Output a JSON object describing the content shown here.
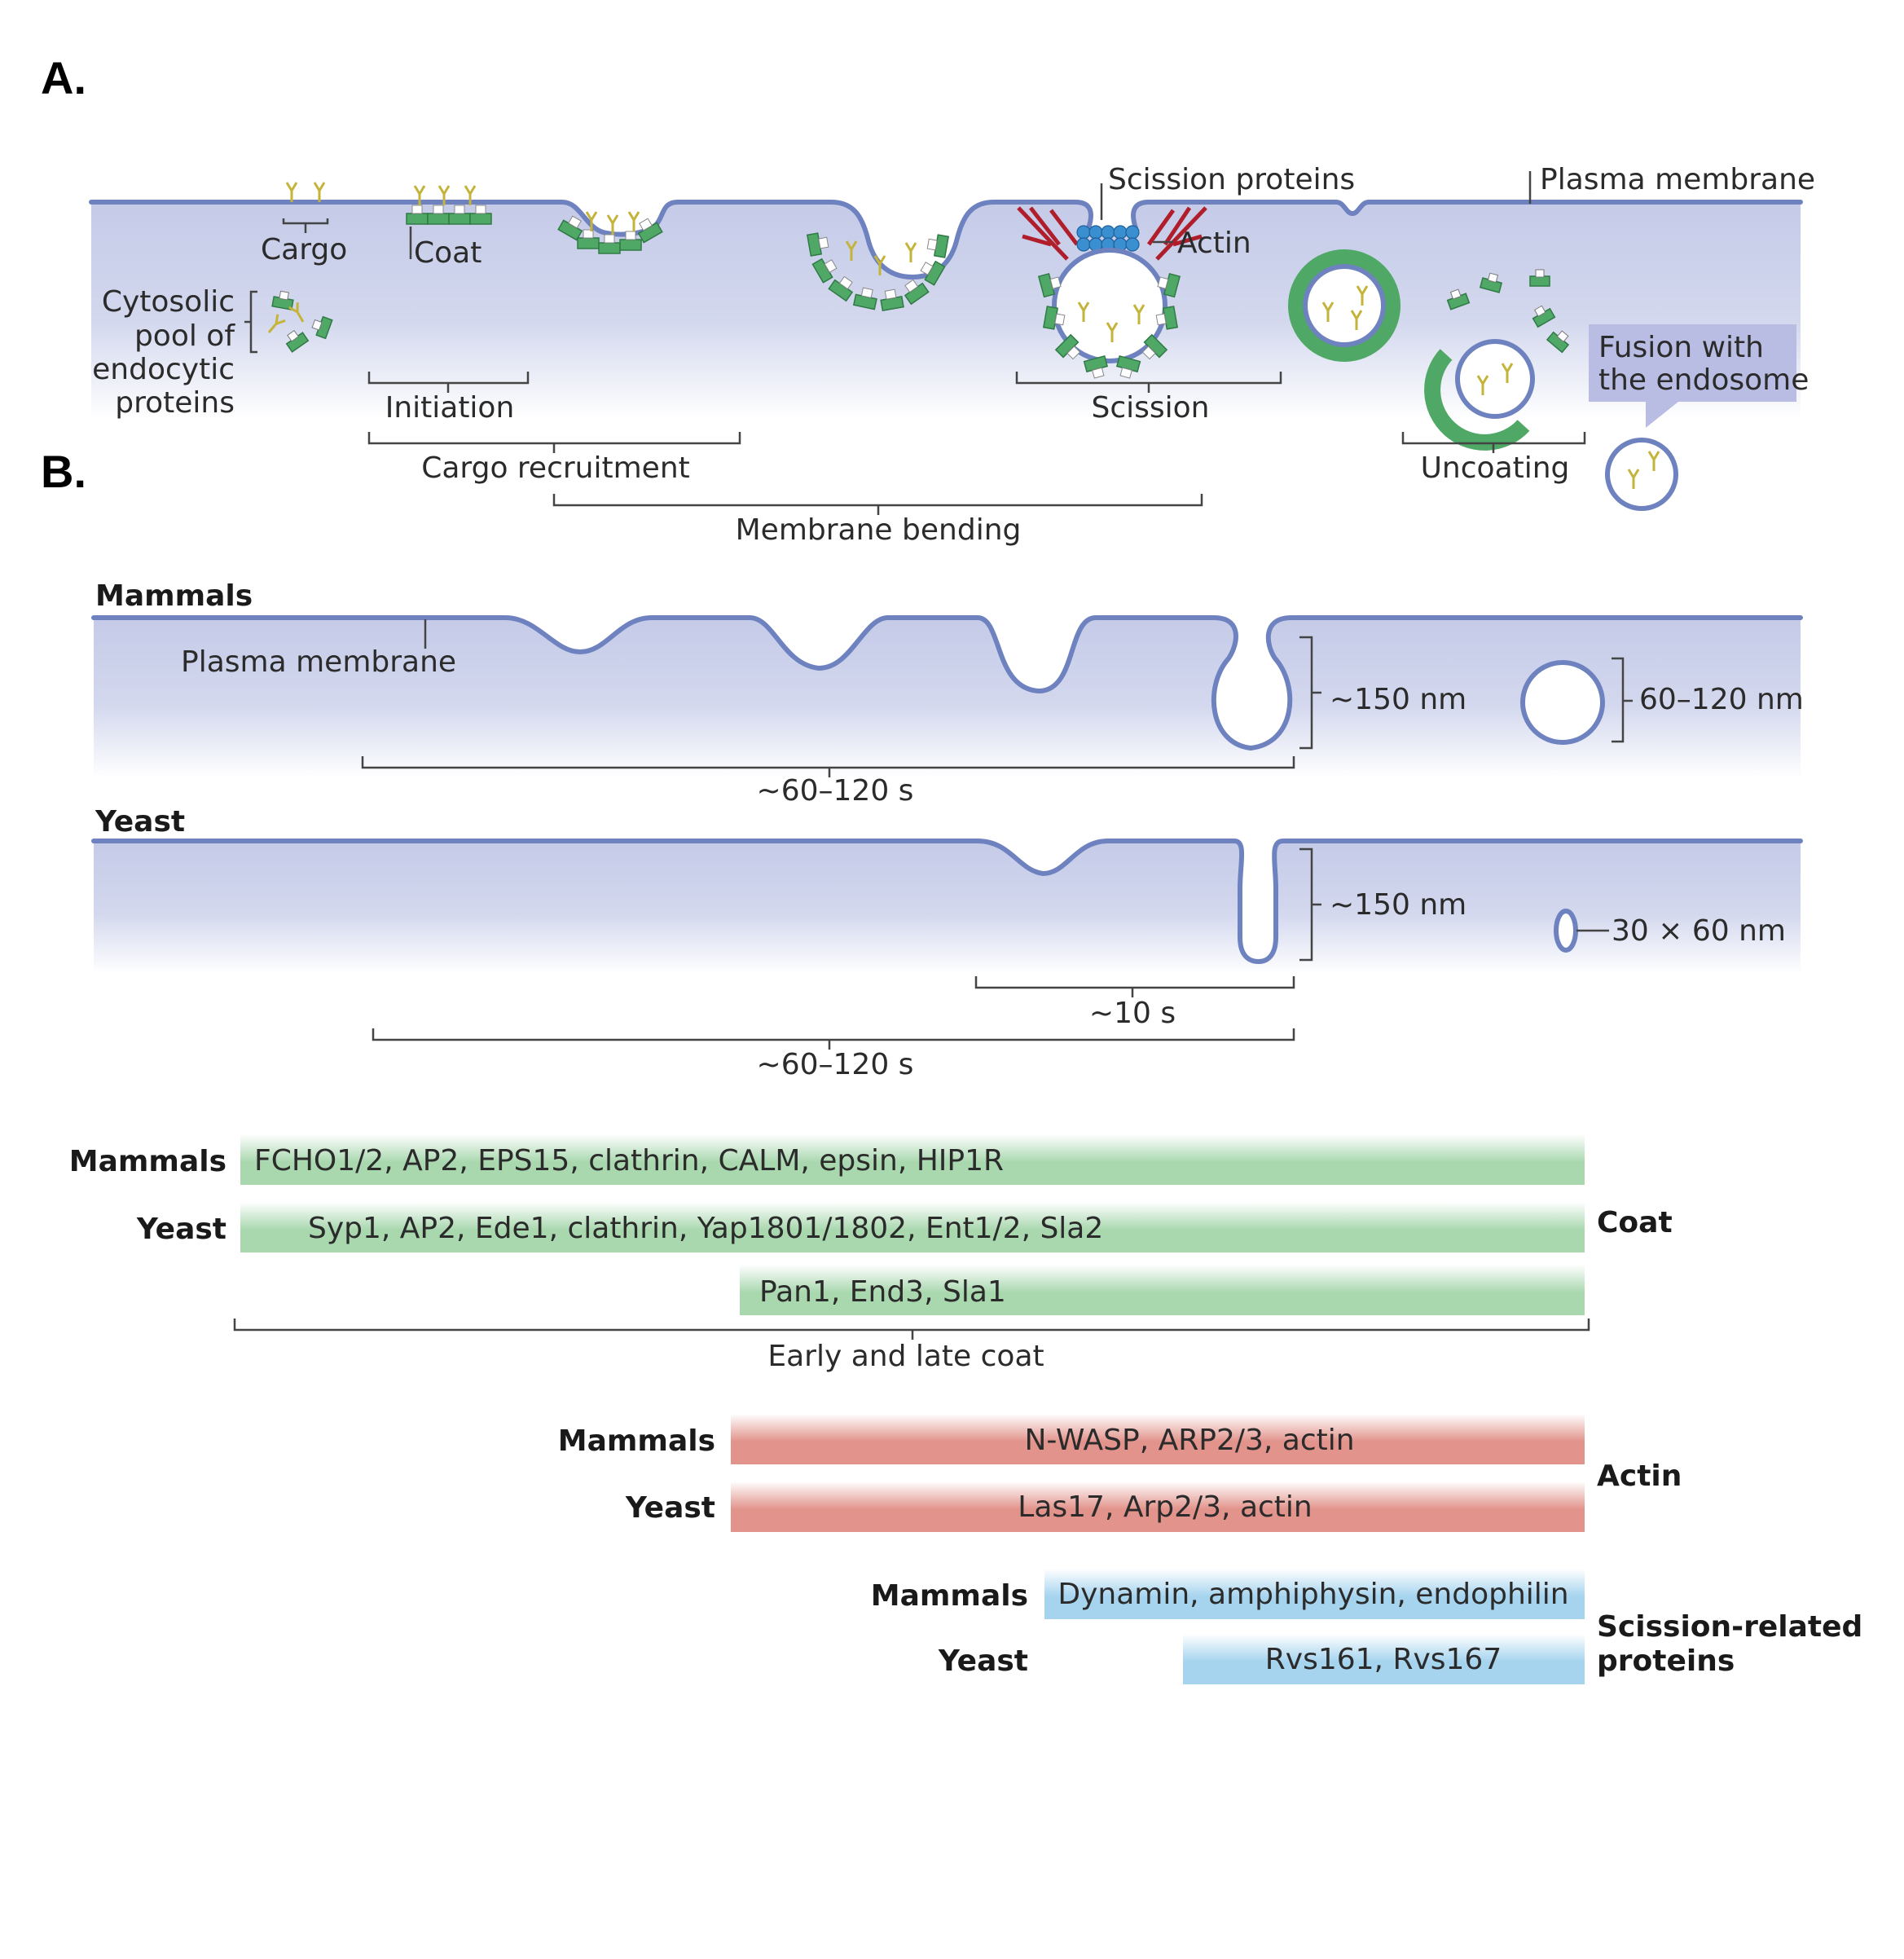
{
  "panel_a": {
    "label": "A.",
    "scission_proteins": "Scission proteins",
    "plasma_membrane": "Plasma membrane",
    "cargo": "Cargo",
    "coat": "Coat",
    "actin": "Actin",
    "cytosolic_pool": [
      "Cytosolic",
      "pool of",
      "endocytic",
      "proteins"
    ],
    "fusion": [
      "Fusion with",
      "the endosome"
    ],
    "stages": {
      "initiation": "Initiation",
      "scission": "Scission",
      "cargo_recruitment": "Cargo recruitment",
      "uncoating": "Uncoating",
      "membrane_bending": "Membrane bending"
    }
  },
  "panel_b": {
    "label": "B.",
    "mammals": {
      "title": "Mammals",
      "plasma_membrane": "Plasma membrane",
      "depth": "~150 nm",
      "vesicle_size": "60–120 nm",
      "duration": "~60–120 s"
    },
    "yeast": {
      "title": "Yeast",
      "depth": "~150 nm",
      "vesicle_size": "30 × 60 nm",
      "short_duration": "~10 s",
      "duration": "~60–120 s"
    },
    "protein_bars": {
      "coat_label": "Coat",
      "actin_label": "Actin",
      "scission_label": [
        "Scission-related",
        "proteins"
      ],
      "early_late_coat": "Early and late coat",
      "mammals": "Mammals",
      "yeast": "Yeast",
      "coat_mammals": "FCHO1/2, AP2, EPS15, clathrin, CALM, epsin, HIP1R",
      "coat_yeast": "Syp1, AP2, Ede1, clathrin, Yap1801/1802, Ent1/2, Sla2",
      "coat_yeast_late": "Pan1, End3, Sla1",
      "actin_mammals": "N-WASP, ARP2/3, actin",
      "actin_yeast": "Las17, Arp2/3, actin",
      "scission_mammals": "Dynamin, amphiphysin, endophilin",
      "scission_yeast": "Rvs161, Rvs167"
    }
  },
  "colors": {
    "membrane": "#6e82c0",
    "cytosol": "#c5cbe8",
    "coat_green": "#4fa866",
    "cargo_yellow": "#d8c94a",
    "actin_red": "#b01e2b",
    "scission_blue": "#3a8fd1",
    "bar_green": "#a9d8af",
    "bar_red": "#e2938b",
    "bar_blue": "#a6d4ef",
    "callout": "#b9bde3"
  }
}
